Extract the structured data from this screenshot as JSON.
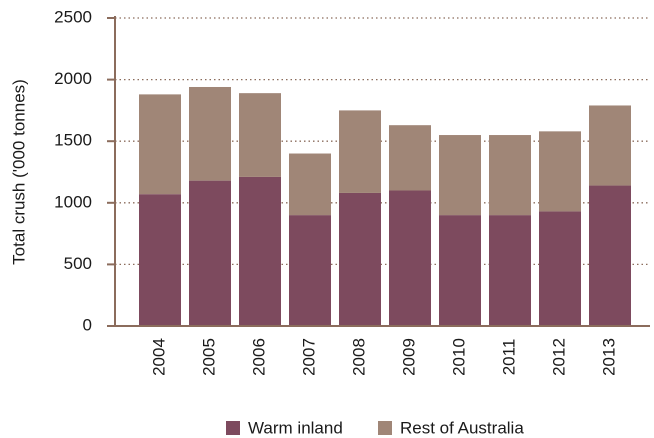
{
  "chart_data": {
    "type": "stacked-bar",
    "y_label": "Total crush ('000 tonnes)",
    "categories": [
      "2004",
      "2005",
      "2006",
      "2007",
      "2008",
      "2009",
      "2010",
      "2011",
      "2012",
      "2013"
    ],
    "series": [
      {
        "name": "Warm inland",
        "color": "#7d4a5e",
        "values": [
          1070,
          1180,
          1210,
          900,
          1080,
          1100,
          900,
          900,
          930,
          1140
        ]
      },
      {
        "name": "Rest of Australia",
        "color": "#a08677",
        "values": [
          810,
          760,
          680,
          500,
          670,
          530,
          650,
          650,
          650,
          650
        ]
      }
    ],
    "ylim": [
      0,
      2500
    ],
    "yticks": [
      0,
      500,
      1000,
      1500,
      2000,
      2500
    ],
    "grid": true
  }
}
